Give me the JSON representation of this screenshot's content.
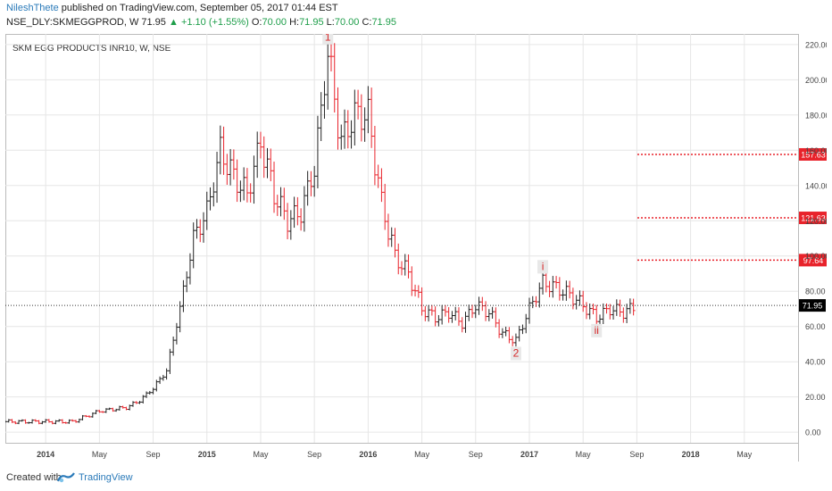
{
  "header": {
    "author": "NileshThete",
    "published_text": " published on TradingView.com, September 05, 2017 01:44 EST",
    "symbol": "NSE_DLY:SKMEGGPROD, W",
    "last_price": "71.95",
    "arrow": "▲",
    "change": "+1.10 (+1.55%)",
    "open_label": "O:",
    "open_value": "70.00",
    "high_label": "H:",
    "high_value": "71.95",
    "low_label": "L:",
    "low_value": "70.00",
    "close_label": "C:",
    "close_value": "71.95"
  },
  "chart_data": {
    "type": "bar",
    "subtype": "ohlc-weekly",
    "title": "SKM EGG PRODUCTS INR10, W, NSE",
    "y_ticks": [
      "220.00",
      "200.00",
      "180.00",
      "160.00",
      "140.00",
      "120.00",
      "100.00",
      "80.00",
      "60.00",
      "40.00",
      "20.00",
      "0.00"
    ],
    "ylim": [
      -6,
      226
    ],
    "x_ticks": [
      "2014",
      "May",
      "Sep",
      "2015",
      "May",
      "Sep",
      "2016",
      "May",
      "Sep",
      "2017",
      "May",
      "Sep",
      "2018",
      "May"
    ],
    "x_tick_dates": [
      "2014-01",
      "2014-05",
      "2014-09",
      "2015-01",
      "2015-05",
      "2015-09",
      "2016-01",
      "2016-05",
      "2016-09",
      "2017-01",
      "2017-05",
      "2017-09",
      "2018-01",
      "2018-05"
    ],
    "xlim": [
      "2013-10",
      "2018-09"
    ],
    "price_series": [
      {
        "date": "2013-10",
        "close": 6
      },
      {
        "date": "2013-11",
        "close": 6
      },
      {
        "date": "2013-12",
        "close": 6
      },
      {
        "date": "2014-01",
        "close": 6
      },
      {
        "date": "2014-02",
        "close": 6
      },
      {
        "date": "2014-03",
        "close": 6
      },
      {
        "date": "2014-04",
        "close": 9
      },
      {
        "date": "2014-05",
        "close": 12
      },
      {
        "date": "2014-06",
        "close": 13
      },
      {
        "date": "2014-07",
        "close": 14
      },
      {
        "date": "2014-08",
        "close": 18
      },
      {
        "date": "2014-09",
        "close": 25
      },
      {
        "date": "2014-10",
        "close": 35
      },
      {
        "date": "2014-11",
        "close": 70
      },
      {
        "date": "2014-12",
        "close": 110
      },
      {
        "date": "2015-01",
        "close": 125
      },
      {
        "date": "2015-02",
        "close": 160
      },
      {
        "date": "2015-03",
        "close": 145
      },
      {
        "date": "2015-04",
        "close": 135
      },
      {
        "date": "2015-05",
        "close": 165
      },
      {
        "date": "2015-06",
        "close": 135
      },
      {
        "date": "2015-07",
        "close": 120
      },
      {
        "date": "2015-08",
        "close": 125
      },
      {
        "date": "2015-09",
        "close": 150
      },
      {
        "date": "2015-10",
        "close": 215
      },
      {
        "date": "2015-11",
        "close": 165
      },
      {
        "date": "2015-12",
        "close": 180
      },
      {
        "date": "2016-01",
        "close": 180
      },
      {
        "date": "2016-02",
        "close": 130
      },
      {
        "date": "2016-03",
        "close": 100
      },
      {
        "date": "2016-04",
        "close": 90
      },
      {
        "date": "2016-05",
        "close": 70
      },
      {
        "date": "2016-06",
        "close": 65
      },
      {
        "date": "2016-07",
        "close": 68
      },
      {
        "date": "2016-08",
        "close": 62
      },
      {
        "date": "2016-09",
        "close": 72
      },
      {
        "date": "2016-10",
        "close": 68
      },
      {
        "date": "2016-11",
        "close": 56
      },
      {
        "date": "2016-12",
        "close": 52
      },
      {
        "date": "2017-01",
        "close": 70
      },
      {
        "date": "2017-02",
        "close": 85
      },
      {
        "date": "2017-03",
        "close": 82
      },
      {
        "date": "2017-04",
        "close": 78
      },
      {
        "date": "2017-05",
        "close": 72
      },
      {
        "date": "2017-06",
        "close": 65
      },
      {
        "date": "2017-07",
        "close": 70
      },
      {
        "date": "2017-08",
        "close": 68
      },
      {
        "date": "2017-09",
        "close": 71.95
      }
    ],
    "horizontal_levels": [
      {
        "value": 157.63,
        "label": "157.63",
        "color": "#e8232b"
      },
      {
        "value": 121.63,
        "label": "121.63",
        "color": "#e8232b"
      },
      {
        "value": 97.64,
        "label": "97.64",
        "color": "#e8232b"
      }
    ],
    "last_price_line": {
      "value": 71.95,
      "label": "71.95"
    },
    "wave_labels": [
      {
        "text": "1",
        "date": "2015-10",
        "price": 215
      },
      {
        "text": "2",
        "date": "2016-12",
        "price": 52
      },
      {
        "text": "i",
        "date": "2017-02",
        "price": 85
      },
      {
        "text": "ii",
        "date": "2017-06",
        "price": 65
      }
    ],
    "colors": {
      "up": "#222222",
      "down": "#e8232b",
      "grid": "#e6e6e6",
      "axis": "#888888"
    }
  },
  "footer": {
    "created_with": "Created with",
    "brand": "TradingView"
  }
}
